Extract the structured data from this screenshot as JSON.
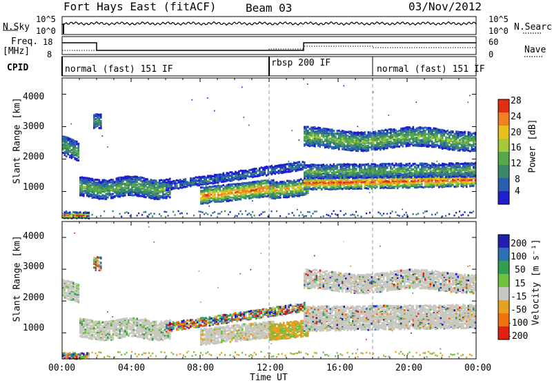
{
  "header": {
    "station": "Fort Hays East (fitACF)",
    "beam": "Beam 03",
    "date": "03/Nov/2012"
  },
  "panels": {
    "noise": {
      "left_label": "N.Sky",
      "right_label": "N.Search",
      "left_ticks": [
        "10^5",
        "10^0"
      ],
      "right_ticks": [
        "10^5",
        "10^0"
      ]
    },
    "freq": {
      "left_label": "Freq.",
      "left_unit": "[MHz]",
      "right_label": "Nave",
      "left_ticks": [
        "18",
        "8"
      ],
      "right_ticks": [
        "60",
        "0"
      ]
    },
    "cpid": {
      "label": "CPID",
      "segments": [
        "normal (fast) 151 IF",
        "rbsp 200 IF",
        "normal (fast) 151 IF"
      ]
    }
  },
  "colors": {
    "power": [
      "#1f1fd0",
      "#2a5fb0",
      "#3a8a6a",
      "#57a84a",
      "#a8c83a",
      "#e8c020",
      "#f08020",
      "#e03010"
    ],
    "velocity": [
      "#2020b0",
      "#2f6fb8",
      "#30a050",
      "#70c040",
      "#c8c8c0",
      "#e8a020",
      "#f07010",
      "#e02010"
    ],
    "ground_scatter": "#c8c8c0"
  },
  "chart_data": [
    {
      "type": "heatmap",
      "name": "power-panel",
      "ylabel": "Slant Range [km]",
      "yticks": [
        "4000",
        "3000",
        "2000",
        "1000"
      ],
      "ylim": [
        180,
        4500
      ],
      "x_ticks": [
        "00:00",
        "04:00",
        "08:00",
        "12:00",
        "16:00",
        "20:00",
        "00:00"
      ],
      "xlim_hours": [
        0,
        24
      ],
      "colorbar": {
        "label": "Power [dB]",
        "ticks": [
          "28",
          "24",
          "20",
          "16",
          "12",
          "8",
          "4"
        ],
        "range": [
          0,
          32
        ]
      }
    },
    {
      "type": "heatmap",
      "name": "velocity-panel",
      "ylabel": "Slant Range [km]",
      "yticks": [
        "4000",
        "3000",
        "2000",
        "1000"
      ],
      "ylim": [
        180,
        4500
      ],
      "x_ticks": [
        "00:00",
        "04:00",
        "08:00",
        "12:00",
        "16:00",
        "20:00",
        "00:00"
      ],
      "xlabel": "Time UT",
      "colorbar": {
        "label": "Velocity [m s⁻¹]",
        "ticks": [
          "200",
          "100",
          "50",
          "15",
          "-15",
          "-50",
          "-100",
          "-200"
        ],
        "range": [
          -250,
          250
        ]
      }
    }
  ]
}
